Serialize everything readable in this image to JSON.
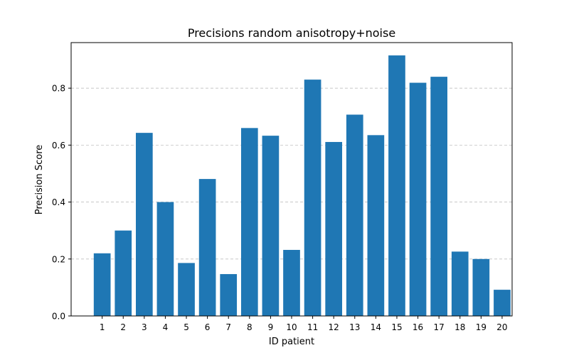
{
  "chart_data": {
    "type": "bar",
    "title": "Precisions random anisotropy+noise",
    "xlabel": "ID patient",
    "ylabel": "Precision Score",
    "categories": [
      "1",
      "2",
      "3",
      "4",
      "5",
      "6",
      "7",
      "8",
      "9",
      "10",
      "11",
      "12",
      "13",
      "14",
      "15",
      "16",
      "17",
      "18",
      "19",
      "20"
    ],
    "values": [
      0.22,
      0.3,
      0.643,
      0.4,
      0.186,
      0.481,
      0.147,
      0.66,
      0.633,
      0.232,
      0.83,
      0.611,
      0.707,
      0.635,
      0.915,
      0.819,
      0.84,
      0.226,
      0.2,
      0.092
    ],
    "ylim": [
      0,
      0.96
    ],
    "yticks": [
      0.0,
      0.2,
      0.4,
      0.6,
      0.8
    ],
    "ytick_labels": [
      "0.0",
      "0.2",
      "0.4",
      "0.6",
      "0.8"
    ],
    "bar_color": "#1f77b4",
    "grid": {
      "y": true,
      "x": false,
      "style": "dashed",
      "color": "#c0c0c0"
    },
    "legend": "none"
  }
}
